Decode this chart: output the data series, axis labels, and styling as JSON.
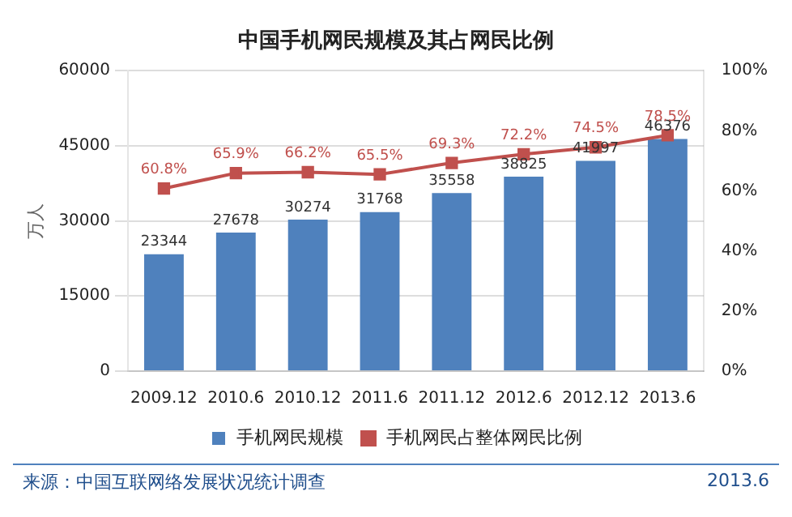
{
  "chart_data": {
    "type": "bar",
    "title": "中国手机网民规模及其占网民比例",
    "ylabel": "万人",
    "categories": [
      "2009.12",
      "2010.6",
      "2010.12",
      "2011.6",
      "2011.12",
      "2012.6",
      "2012.12",
      "2013.6"
    ],
    "series": [
      {
        "name": "手机网民规模",
        "color": "#4f81bd",
        "values": [
          23344,
          27678,
          30274,
          31768,
          35558,
          38825,
          41997,
          46376
        ],
        "value_labels": [
          "23344",
          "27678",
          "30274",
          "31768",
          "35558",
          "38825",
          "41997",
          "46376"
        ]
      },
      {
        "name": "手机网民占整体网民比例",
        "type": "line",
        "axis": "y2",
        "color": "#c0504d",
        "values": [
          60.8,
          65.9,
          66.2,
          65.5,
          69.3,
          72.2,
          74.5,
          78.5
        ],
        "value_labels": [
          "60.8%",
          "65.9%",
          "66.2%",
          "65.5%",
          "69.3%",
          "72.2%",
          "74.5%",
          "78.5%"
        ]
      }
    ],
    "ylim": [
      0,
      60000
    ],
    "yticks": [
      0,
      15000,
      30000,
      45000,
      60000
    ],
    "y2lim": [
      0,
      100
    ],
    "y2ticks": [
      {
        "value": 0,
        "label": "0%"
      },
      {
        "value": 20,
        "label": "20%"
      },
      {
        "value": 40,
        "label": "40%"
      },
      {
        "value": 60,
        "label": "60%"
      },
      {
        "value": 80,
        "label": "80%"
      },
      {
        "value": 100,
        "label": "100%"
      }
    ],
    "grid": "y",
    "legend": "bottom",
    "marker": "square",
    "line_style": "solid",
    "annotations": [
      "来源：中国互联网络发展状况统计调查",
      "2013.6"
    ]
  }
}
